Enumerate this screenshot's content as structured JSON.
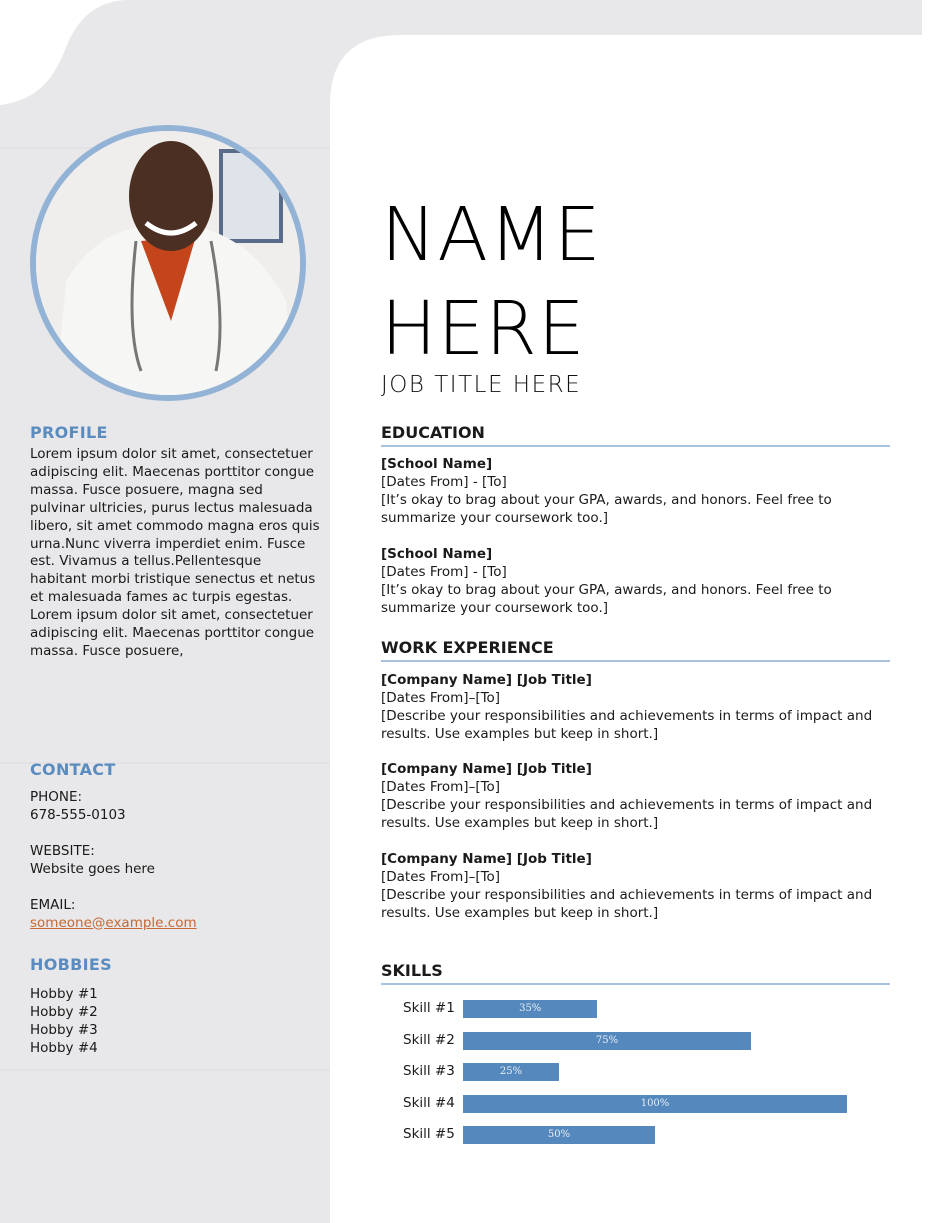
{
  "header": {
    "name_line1": "NAME",
    "name_line2": "HERE",
    "job_title": "JOB TITLE HERE"
  },
  "profile": {
    "heading": "PROFILE",
    "text": "Lorem ipsum dolor sit amet, consectetuer adipiscing elit. Maecenas porttitor congue massa. Fusce posuere, magna sed pulvinar ultricies, purus lectus malesuada libero, sit amet commodo magna eros quis urna.Nunc viverra imperdiet enim. Fusce est. Vivamus a tellus.Pellentesque habitant morbi tristique senectus et netus et malesuada fames ac turpis egestas. Lorem ipsum dolor sit amet, consectetuer adipiscing elit. Maecenas porttitor congue massa. Fusce posuere,"
  },
  "contact": {
    "heading": "CONTACT",
    "phone_label": "PHONE:",
    "phone": "678-555-0103",
    "website_label": "WEBSITE:",
    "website": "Website goes here",
    "email_label": "EMAIL:",
    "email": "someone@example.com"
  },
  "hobbies": {
    "heading": "HOBBIES",
    "items": [
      "Hobby #1",
      "Hobby #2",
      "Hobby #3",
      "Hobby #4"
    ]
  },
  "education": {
    "heading": "EDUCATION",
    "items": [
      {
        "school": "[School Name]",
        "dates": "[Dates From] - [To]",
        "desc": "[It’s okay to brag about your GPA, awards, and honors. Feel free to summarize your coursework too.]"
      },
      {
        "school": "[School Name]",
        "dates": "[Dates From] - [To]",
        "desc": "[It’s okay to brag about your GPA, awards, and honors. Feel free to summarize your coursework too.]"
      }
    ]
  },
  "work": {
    "heading": "WORK EXPERIENCE",
    "items": [
      {
        "title": "[Company Name]  [Job Title]",
        "dates": "[Dates From]–[To]",
        "desc": "[Describe your responsibilities and achievements in terms of impact and results. Use examples but keep in short.]"
      },
      {
        "title": "[Company Name]  [Job Title]",
        "dates": "[Dates From]–[To]",
        "desc": "[Describe your responsibilities and achievements in terms of impact and results. Use examples but keep in short.]"
      },
      {
        "title": "[Company Name]  [Job Title]",
        "dates": "[Dates From]–[To]",
        "desc": "[Describe your responsibilities and achievements in terms of impact and results. Use examples but keep in short.]"
      }
    ]
  },
  "skills": {
    "heading": "SKILLS",
    "items": [
      {
        "label": "Skill #1",
        "value": 35,
        "text": "35%"
      },
      {
        "label": "Skill #2",
        "value": 75,
        "text": "75%"
      },
      {
        "label": "Skill #3",
        "value": 25,
        "text": "25%"
      },
      {
        "label": "Skill #4",
        "value": 100,
        "text": "100%"
      },
      {
        "label": "Skill #5",
        "value": 50,
        "text": "50%"
      }
    ]
  },
  "colors": {
    "accent": "#5b8cbf",
    "bar": "#5589bd",
    "sidebar": "#e8e7e9",
    "link": "#c46a36"
  }
}
